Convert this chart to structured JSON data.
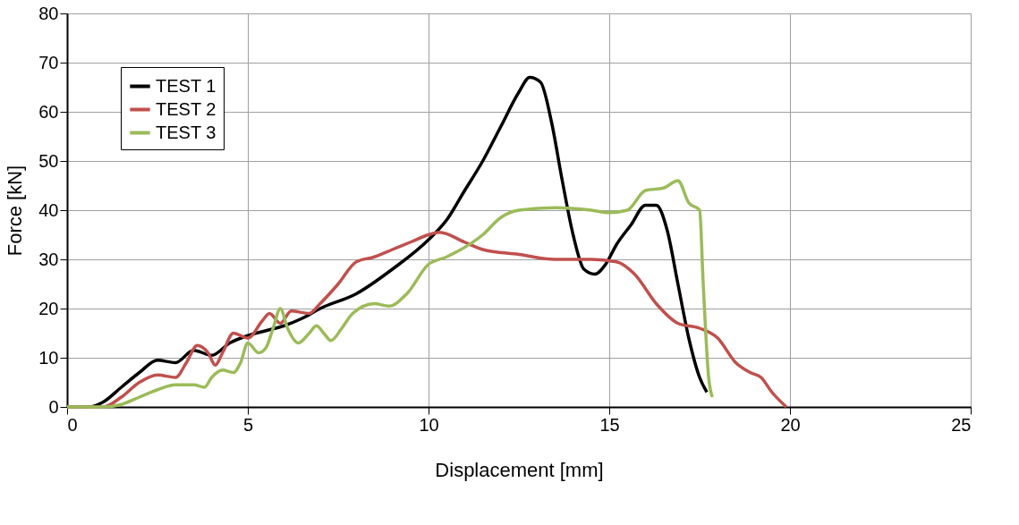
{
  "chart_data": {
    "type": "line",
    "xlabel": "Displacement [mm]",
    "ylabel": "Force [kN]",
    "xlim": [
      0,
      25
    ],
    "xticks": [
      0,
      5,
      10,
      15,
      20,
      25
    ],
    "ylim": [
      0,
      80
    ],
    "yticks": [
      0,
      10,
      20,
      30,
      40,
      50,
      60,
      70,
      80
    ],
    "grid": true,
    "legend": "top left",
    "marker": "none",
    "line_style": "solid",
    "series": [
      {
        "name": "TEST 1",
        "color": "#000000",
        "x": [
          0,
          0.6,
          1,
          1.5,
          2,
          2.5,
          3,
          3.5,
          4,
          4.5,
          5,
          5.5,
          6,
          6.5,
          7,
          8,
          9,
          10,
          10.5,
          11,
          11.5,
          12,
          12.5,
          12.8,
          13.1,
          13.4,
          13.7,
          14,
          14.3,
          14.6,
          14.9,
          15.2,
          15.6,
          16,
          16.3,
          16.6,
          16.9,
          17.2,
          17.5,
          17.7
        ],
        "values": [
          0,
          0,
          1,
          4,
          7,
          9.5,
          9,
          11.5,
          10.5,
          13,
          14.5,
          15.5,
          16.5,
          18,
          20,
          23,
          28,
          34,
          38,
          44,
          50,
          57,
          64,
          67,
          66,
          58,
          46,
          35,
          28,
          27,
          29,
          33,
          37,
          41,
          41,
          36,
          25,
          14,
          6,
          3
        ]
      },
      {
        "name": "TEST 2",
        "color": "#c0504d",
        "x": [
          0,
          1,
          1.5,
          2,
          2.5,
          3,
          3.3,
          3.6,
          3.9,
          4.1,
          4.3,
          4.6,
          5,
          5.4,
          5.6,
          5.9,
          6.2,
          6.7,
          7,
          7.5,
          8,
          8.5,
          9,
          9.5,
          10,
          10.3,
          11,
          11.5,
          12.5,
          13.5,
          14.5,
          15.2,
          15.7,
          16.3,
          16.9,
          17.5,
          18,
          18.5,
          18.9,
          19.2,
          19.5,
          19.9
        ],
        "values": [
          0,
          0,
          2,
          5,
          6.5,
          6,
          9,
          12.5,
          11,
          8.5,
          11,
          15,
          14,
          17.5,
          19,
          17,
          19.5,
          19,
          21,
          25,
          29.5,
          30.5,
          32,
          33.5,
          35,
          35.5,
          33.5,
          32,
          31,
          30,
          30,
          29.5,
          27,
          21,
          17,
          16,
          14,
          9,
          7,
          6,
          3,
          0
        ]
      },
      {
        "name": "TEST 3",
        "color": "#9bbb59",
        "x": [
          0,
          1,
          1.5,
          2,
          2.5,
          3,
          3.5,
          3.8,
          4,
          4.3,
          4.6,
          4.8,
          5,
          5.3,
          5.5,
          5.7,
          5.9,
          6.1,
          6.4,
          6.7,
          6.9,
          7.1,
          7.3,
          7.6,
          7.9,
          8.5,
          8.9,
          9.4,
          10,
          10.5,
          11.5,
          12,
          12.5,
          13.5,
          14.5,
          15,
          15.5,
          16,
          16.5,
          16.9,
          17.2,
          17.5,
          17.6,
          17.75,
          17.85
        ],
        "values": [
          0,
          0,
          0.5,
          2,
          3.5,
          4.5,
          4.5,
          4,
          6,
          7.5,
          7,
          9,
          13,
          11,
          12,
          16,
          20,
          16,
          13,
          15,
          16.5,
          15,
          13.5,
          16,
          19,
          21,
          20.5,
          23,
          29,
          30.5,
          35,
          38.5,
          40,
          40.5,
          40,
          39.5,
          40,
          44,
          44.5,
          46,
          41.5,
          40,
          25,
          6,
          2
        ]
      }
    ]
  }
}
